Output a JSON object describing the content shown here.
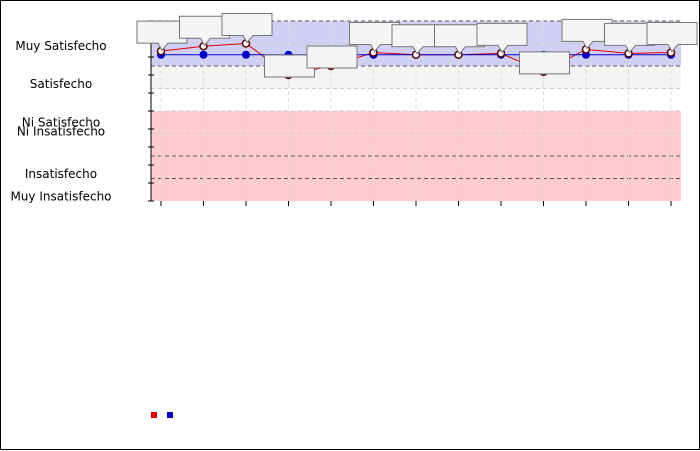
{
  "chart_data": {
    "type": "line",
    "title": "",
    "xlabel": "",
    "ylabel": "",
    "y_categories": [
      "Muy Insatisfecho",
      "Insatisfecho",
      "Ni Insatisfecho",
      "Ni Satisfecho",
      "Satisfecho",
      "Muy Satisfecho"
    ],
    "ylim": [
      1,
      5
    ],
    "x": [
      1,
      2,
      3,
      4,
      5,
      6,
      7,
      8,
      9,
      10,
      11,
      12,
      13
    ],
    "bands": [
      {
        "from": 1,
        "to": 3,
        "color": "#ffcccc"
      },
      {
        "from": 3,
        "to": 3.5,
        "color": "#ffffff"
      },
      {
        "from": 3.5,
        "to": 4,
        "color": "#f4f4f4"
      },
      {
        "from": 4,
        "to": 5,
        "color": "#d0d0f4"
      }
    ],
    "series": [
      {
        "color": "#e00000",
        "values": [
          4.33,
          4.44,
          4.5,
          3.8,
          4.0,
          4.3,
          4.25,
          4.25,
          4.28,
          3.87,
          4.37,
          4.28,
          4.3
        ]
      },
      {
        "color": "#0000c8",
        "values": [
          4.25,
          4.25,
          4.25,
          4.25,
          4.25,
          4.25,
          4.25,
          4.25,
          4.25,
          4.25,
          4.25,
          4.25,
          4.25
        ]
      }
    ],
    "legend": "bottom-left",
    "grid": true,
    "data_labels": [
      "",
      "",
      "",
      "",
      "",
      "",
      "",
      "",
      "",
      "",
      "",
      "",
      ""
    ]
  }
}
